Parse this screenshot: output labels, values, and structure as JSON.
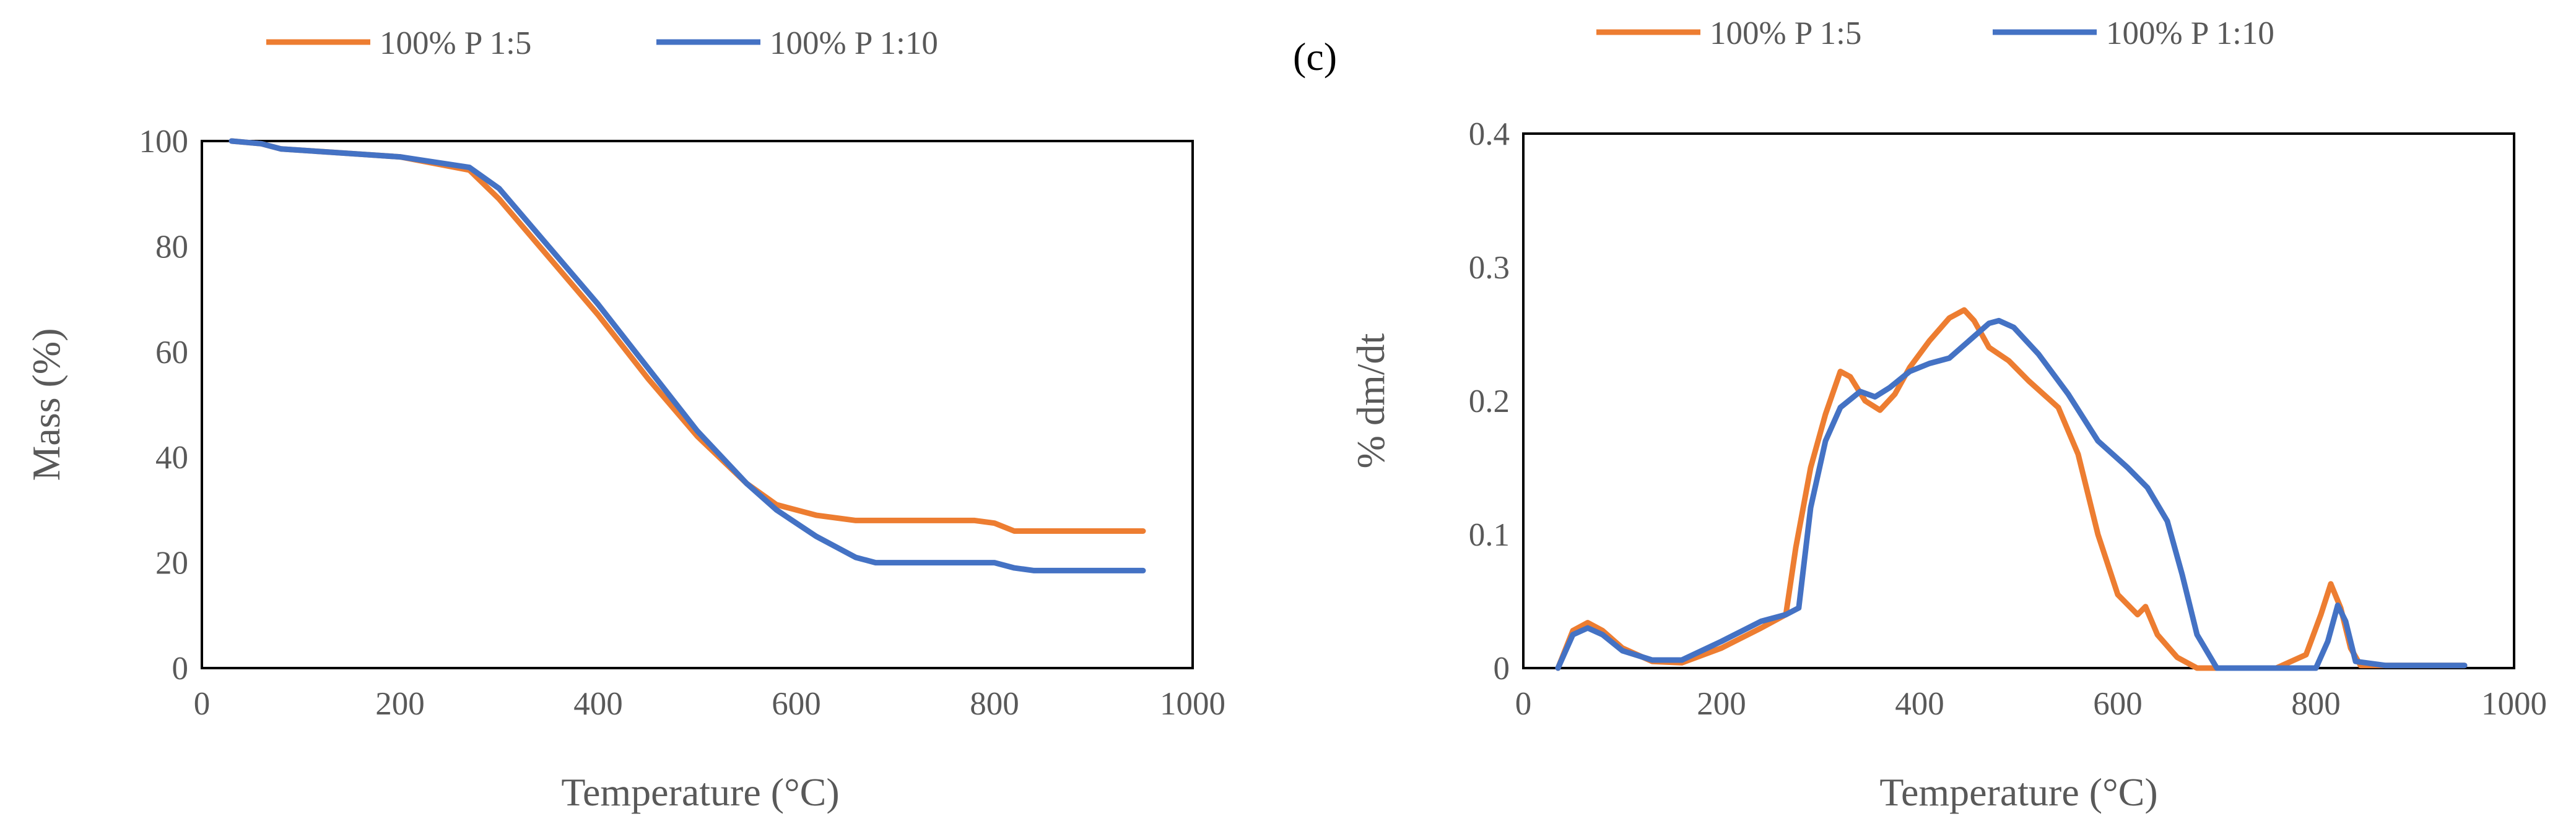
{
  "colors": {
    "orange": "#ED7D31",
    "blue": "#4472C4",
    "axis_text": "#595959"
  },
  "chart_data": [
    {
      "type": "line",
      "xlabel": "Temperature (°C)",
      "ylabel": "Mass (%)",
      "xlim": [
        0,
        1000
      ],
      "ylim": [
        0,
        100
      ],
      "xticks": [
        "0",
        "200",
        "400",
        "600",
        "800",
        "1000"
      ],
      "yticks": [
        "0",
        "20",
        "40",
        "60",
        "80",
        "100"
      ],
      "grid": false,
      "legend_position": "top",
      "series": [
        {
          "name": "100% P 1:5",
          "color": "#ED7D31",
          "x": [
            30,
            60,
            80,
            120,
            200,
            270,
            300,
            350,
            400,
            450,
            500,
            550,
            580,
            620,
            660,
            700,
            780,
            800,
            820,
            840,
            900,
            950
          ],
          "y": [
            100,
            99.5,
            98.5,
            98,
            97,
            94.5,
            89,
            78,
            67,
            55,
            44,
            35,
            31,
            29,
            28,
            28,
            28,
            27.5,
            26,
            26,
            26,
            26
          ]
        },
        {
          "name": "100% P 1:10",
          "color": "#4472C4",
          "x": [
            30,
            60,
            80,
            120,
            200,
            270,
            300,
            350,
            400,
            450,
            500,
            550,
            580,
            620,
            660,
            680,
            780,
            800,
            820,
            840,
            900,
            950
          ],
          "y": [
            100,
            99.5,
            98.5,
            98,
            97,
            95,
            91,
            80,
            69,
            57,
            45,
            35,
            30,
            25,
            21,
            20,
            20,
            20,
            19,
            18.5,
            18.5,
            18.5
          ]
        }
      ]
    },
    {
      "type": "line",
      "panel_label": "(c)",
      "xlabel": "Temperature (°C)",
      "ylabel": "% dm/dt",
      "xlim": [
        0,
        1000
      ],
      "ylim": [
        0,
        0.4
      ],
      "xticks": [
        "0",
        "200",
        "400",
        "600",
        "800",
        "1000"
      ],
      "yticks": [
        "0",
        "0.1",
        "0.2",
        "0.3",
        "0.4"
      ],
      "grid": false,
      "legend_position": "top",
      "series": [
        {
          "name": "100% P 1:5",
          "color": "#ED7D31",
          "x": [
            35,
            50,
            65,
            80,
            100,
            130,
            160,
            200,
            240,
            265,
            275,
            290,
            305,
            320,
            330,
            345,
            360,
            375,
            390,
            410,
            430,
            445,
            455,
            470,
            490,
            510,
            540,
            560,
            580,
            600,
            620,
            628,
            640,
            660,
            680,
            700,
            760,
            790,
            805,
            815,
            825,
            835,
            845,
            870,
            950
          ],
          "y": [
            0,
            0.028,
            0.034,
            0.028,
            0.015,
            0.005,
            0.004,
            0.015,
            0.03,
            0.04,
            0.09,
            0.15,
            0.19,
            0.222,
            0.218,
            0.2,
            0.193,
            0.205,
            0.225,
            0.245,
            0.262,
            0.268,
            0.26,
            0.24,
            0.23,
            0.215,
            0.195,
            0.16,
            0.1,
            0.055,
            0.04,
            0.046,
            0.025,
            0.008,
            0,
            0,
            0,
            0.01,
            0.04,
            0.063,
            0.045,
            0.015,
            0.002,
            0.002,
            0.002
          ]
        },
        {
          "name": "100% P 1:10",
          "color": "#4472C4",
          "x": [
            35,
            50,
            65,
            80,
            100,
            130,
            160,
            200,
            240,
            265,
            278,
            290,
            305,
            320,
            340,
            355,
            370,
            390,
            410,
            430,
            450,
            470,
            480,
            495,
            520,
            550,
            580,
            610,
            630,
            650,
            665,
            680,
            700,
            780,
            800,
            812,
            822,
            830,
            840,
            870,
            950
          ],
          "y": [
            0,
            0.025,
            0.03,
            0.025,
            0.013,
            0.006,
            0.006,
            0.02,
            0.035,
            0.04,
            0.045,
            0.12,
            0.17,
            0.195,
            0.207,
            0.203,
            0.21,
            0.222,
            0.228,
            0.232,
            0.245,
            0.258,
            0.26,
            0.255,
            0.235,
            0.205,
            0.17,
            0.15,
            0.135,
            0.11,
            0.07,
            0.025,
            0,
            0,
            0,
            0.02,
            0.047,
            0.035,
            0.005,
            0.002,
            0.002
          ]
        }
      ]
    }
  ]
}
